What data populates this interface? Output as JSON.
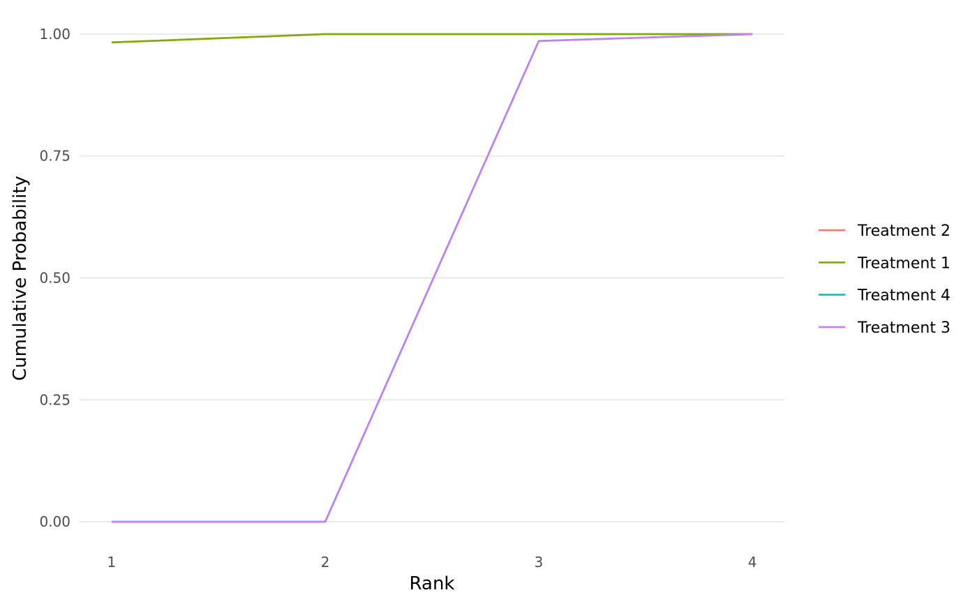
{
  "chart_data": {
    "type": "line",
    "title": "",
    "xlabel": "Rank",
    "ylabel": "Cumulative Probability",
    "x": [
      1,
      2,
      3,
      4
    ],
    "x_tick_labels": [
      "1",
      "2",
      "3",
      "4"
    ],
    "xlim": [
      0.85,
      4.15
    ],
    "ylim": [
      -0.05,
      1.05
    ],
    "y_ticks": [
      0,
      0.25,
      0.5,
      0.75,
      1.0
    ],
    "y_tick_labels": [
      "0.00",
      "0.25",
      "0.50",
      "0.75",
      "1.00"
    ],
    "grid": "horizontal major gridlines",
    "legend_position": "right",
    "series": [
      {
        "name": "Treatment 2",
        "color": "#F8766D",
        "values": [
          0.983,
          1.0,
          1.0,
          1.0
        ]
      },
      {
        "name": "Treatment 1",
        "color": "#7CAE00",
        "values": [
          0.983,
          1.0,
          1.0,
          1.0
        ]
      },
      {
        "name": "Treatment 4",
        "color": "#00BFC4",
        "values": [
          0.0,
          0.0,
          0.986,
          1.0
        ]
      },
      {
        "name": "Treatment 3",
        "color": "#C77CFF",
        "values": [
          0.0,
          0.0,
          0.986,
          1.0
        ]
      }
    ]
  }
}
